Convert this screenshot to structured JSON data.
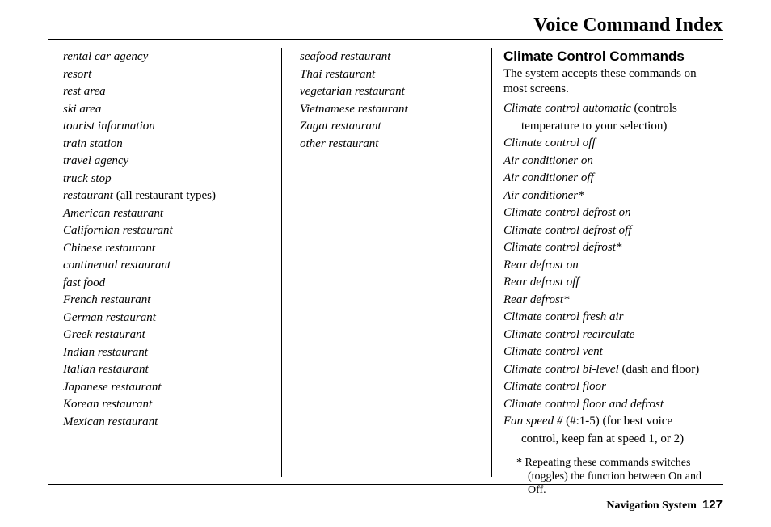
{
  "title": "Voice Command Index",
  "columns": {
    "col1": [
      {
        "t": "rental car agency",
        "i": true
      },
      {
        "t": "resort",
        "i": true
      },
      {
        "t": "rest area",
        "i": true
      },
      {
        "t": "ski area",
        "i": true
      },
      {
        "t": "tourist information",
        "i": true
      },
      {
        "t": "train station",
        "i": true
      },
      {
        "t": "travel agency",
        "i": true
      },
      {
        "t": "truck stop",
        "i": true
      },
      {
        "t": "restaurant",
        "i": true,
        "after": " (all restaurant types)"
      },
      {
        "t": "American restaurant",
        "i": true
      },
      {
        "t": "Californian restaurant",
        "i": true
      },
      {
        "t": "Chinese restaurant",
        "i": true
      },
      {
        "t": "continental restaurant",
        "i": true
      },
      {
        "t": "fast food",
        "i": true
      },
      {
        "t": "French restaurant",
        "i": true
      },
      {
        "t": "German restaurant",
        "i": true
      },
      {
        "t": "Greek restaurant",
        "i": true
      },
      {
        "t": "Indian restaurant",
        "i": true
      },
      {
        "t": "Italian restaurant",
        "i": true
      },
      {
        "t": "Japanese restaurant",
        "i": true
      },
      {
        "t": "Korean restaurant",
        "i": true
      },
      {
        "t": "Mexican restaurant",
        "i": true
      }
    ],
    "col2": [
      {
        "t": "seafood restaurant",
        "i": true
      },
      {
        "t": "Thai restaurant",
        "i": true
      },
      {
        "t": "vegetarian restaurant",
        "i": true
      },
      {
        "t": "Vietnamese restaurant",
        "i": true
      },
      {
        "t": "Zagat restaurant",
        "i": true
      },
      {
        "t": "other restaurant",
        "i": true
      }
    ]
  },
  "section": {
    "heading": "Climate Control Commands",
    "intro": "The system accepts these commands on most screens.",
    "commands": [
      {
        "t": "Climate control automatic",
        "after": " (controls",
        "cont": "temperature to your selection)"
      },
      {
        "t": "Climate control off"
      },
      {
        "t": "Air conditioner on"
      },
      {
        "t": "Air conditioner off"
      },
      {
        "t": "Air conditioner*"
      },
      {
        "t": "Climate control defrost on"
      },
      {
        "t": "Climate control defrost off"
      },
      {
        "t": "Climate control defrost*"
      },
      {
        "t": "Rear defrost on"
      },
      {
        "t": "Rear defrost off"
      },
      {
        "t": "Rear defrost*"
      },
      {
        "t": "Climate control fresh air"
      },
      {
        "t": "Climate control recirculate"
      },
      {
        "t": "Climate control vent"
      },
      {
        "t": "Climate control bi-level",
        "after": " (dash and floor)"
      },
      {
        "t": "Climate control floor"
      },
      {
        "t": "Climate control floor and defrost"
      },
      {
        "t": "Fan speed #",
        "after": " (#:1-5) (for best voice",
        "cont": "control, keep fan at speed 1, or 2)"
      }
    ],
    "footnote": "*  Repeating these commands switches (toggles) the function between On and Off."
  },
  "footer": {
    "label": "Navigation System",
    "page": "127"
  }
}
